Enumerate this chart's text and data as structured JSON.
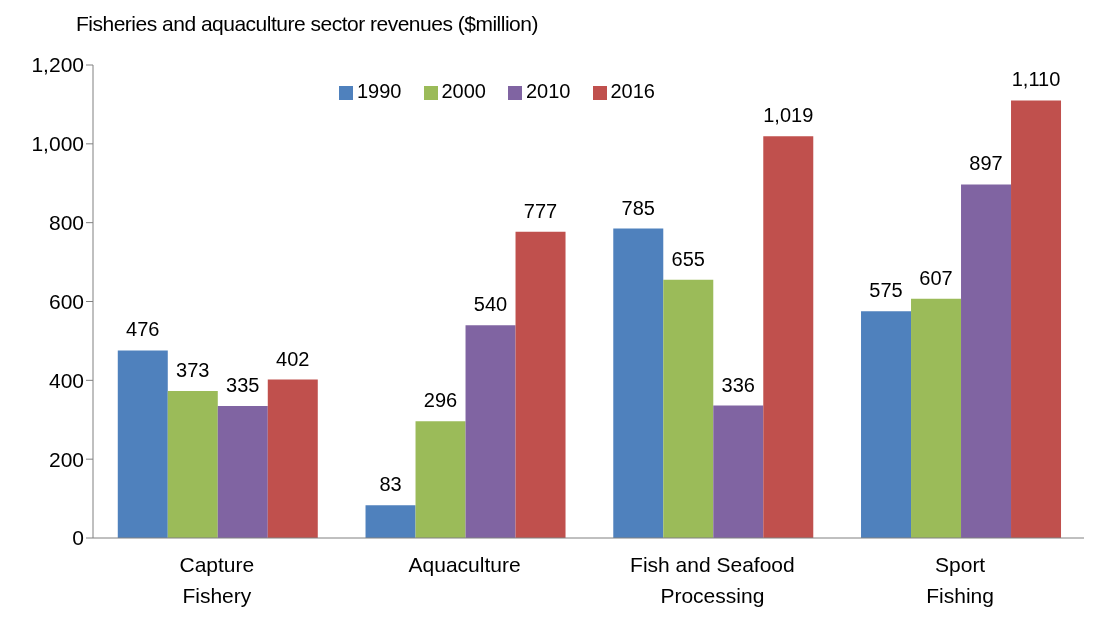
{
  "chart_data": {
    "type": "bar",
    "title": "Fisheries and aquaculture sector revenues ($million)",
    "categories": [
      "Capture Fishery",
      "Aquaculture",
      "Fish and Seafood Processing",
      "Sport Fishing"
    ],
    "series": [
      {
        "name": "1990",
        "color": "#4f81bd",
        "values": [
          476,
          83,
          785,
          575
        ],
        "value_labels": [
          "476",
          "83",
          "785",
          "575"
        ]
      },
      {
        "name": "2000",
        "color": "#9bbb59",
        "values": [
          373,
          296,
          655,
          607
        ],
        "value_labels": [
          "373",
          "296",
          "655",
          "607"
        ]
      },
      {
        "name": "2010",
        "color": "#8064a2",
        "values": [
          335,
          540,
          336,
          897
        ],
        "value_labels": [
          "335",
          "540",
          "336",
          "897"
        ]
      },
      {
        "name": "2016",
        "color": "#c0504d",
        "values": [
          402,
          777,
          1019,
          1110
        ],
        "value_labels": [
          "402",
          "777",
          "1,019",
          "1,110"
        ]
      }
    ],
    "ylim": [
      0,
      1200
    ],
    "yticks": [
      0,
      200,
      400,
      600,
      800,
      {
        "value": 1000,
        "label": "1,000"
      },
      {
        "value": 1200,
        "label": "1,200"
      }
    ],
    "grid": false,
    "legend": "top"
  }
}
